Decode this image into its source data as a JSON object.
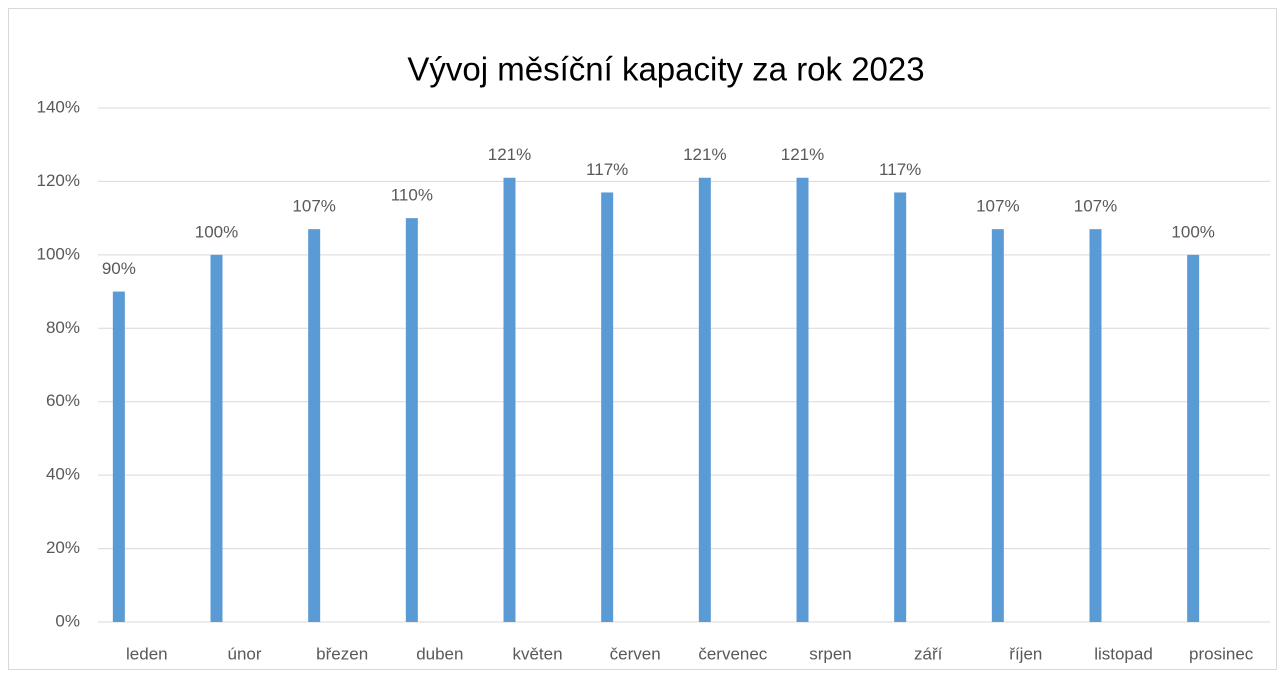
{
  "chart_data": {
    "type": "bar",
    "title": "Vývoj měsíční kapacity za rok 2023",
    "categories": [
      "leden",
      "únor",
      "březen",
      "duben",
      "květen",
      "červen",
      "červenec",
      "srpen",
      "září",
      "říjen",
      "listopad",
      "prosinec"
    ],
    "values": [
      90,
      100,
      107,
      110,
      121,
      117,
      121,
      121,
      117,
      107,
      107,
      100
    ],
    "value_labels": [
      "90%",
      "100%",
      "107%",
      "110%",
      "121%",
      "117%",
      "121%",
      "121%",
      "117%",
      "107%",
      "107%",
      "100%"
    ],
    "color": "#5b9bd5",
    "ylim": [
      0,
      140
    ],
    "yticks": [
      {
        "value": 0,
        "label": "0%"
      },
      {
        "value": 20,
        "label": "20%"
      },
      {
        "value": 40,
        "label": "40%"
      },
      {
        "value": 60,
        "label": "60%"
      },
      {
        "value": 80,
        "label": "80%"
      },
      {
        "value": 100,
        "label": "100%"
      },
      {
        "value": 120,
        "label": "120%"
      },
      {
        "value": 140,
        "label": "140%"
      }
    ],
    "grid": true
  }
}
